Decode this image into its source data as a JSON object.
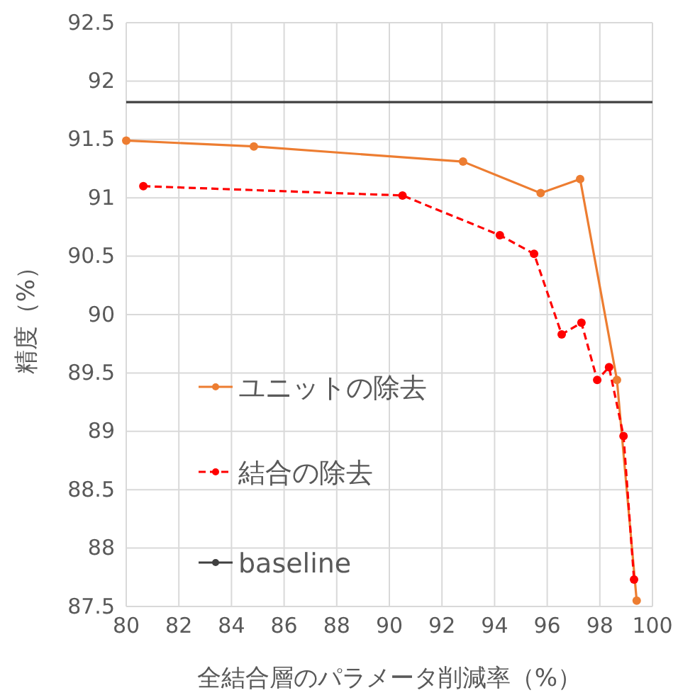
{
  "chart_data": {
    "type": "line",
    "xlabel": "全結合層のパラメータ削減率（%）",
    "ylabel": "精度（%）",
    "xlim": [
      80,
      100
    ],
    "xticks": [
      80,
      82,
      84,
      86,
      88,
      90,
      92,
      94,
      96,
      98,
      100
    ],
    "ylim": [
      87.5,
      92.5
    ],
    "yticks": [
      87.5,
      88,
      88.5,
      89,
      89.5,
      90,
      90.5,
      91,
      91.5,
      92,
      92.5
    ],
    "grid": true,
    "legend": "left",
    "marker": "circle",
    "series": [
      {
        "name": "ユニットの除去",
        "color": "#ed7d31",
        "line_style": "solid",
        "x": [
          80,
          84.85,
          92.8,
          95.75,
          97.25,
          98.65,
          99.4
        ],
        "values": [
          91.49,
          91.44,
          91.31,
          91.04,
          91.16,
          89.44,
          87.55
        ]
      },
      {
        "name": "結合の除去",
        "color": "#ff0000",
        "line_style": "dashed",
        "x": [
          80.65,
          90.5,
          94.2,
          95.5,
          96.55,
          97.3,
          97.9,
          98.35,
          98.9,
          99.3
        ],
        "values": [
          91.1,
          91.02,
          90.68,
          90.52,
          89.83,
          89.93,
          89.44,
          89.55,
          88.96,
          87.73
        ]
      },
      {
        "name": "baseline",
        "color": "#404040",
        "line_style": "solid",
        "marker": "none",
        "x": [
          80,
          100
        ],
        "values": [
          91.82,
          91.82
        ]
      }
    ]
  }
}
